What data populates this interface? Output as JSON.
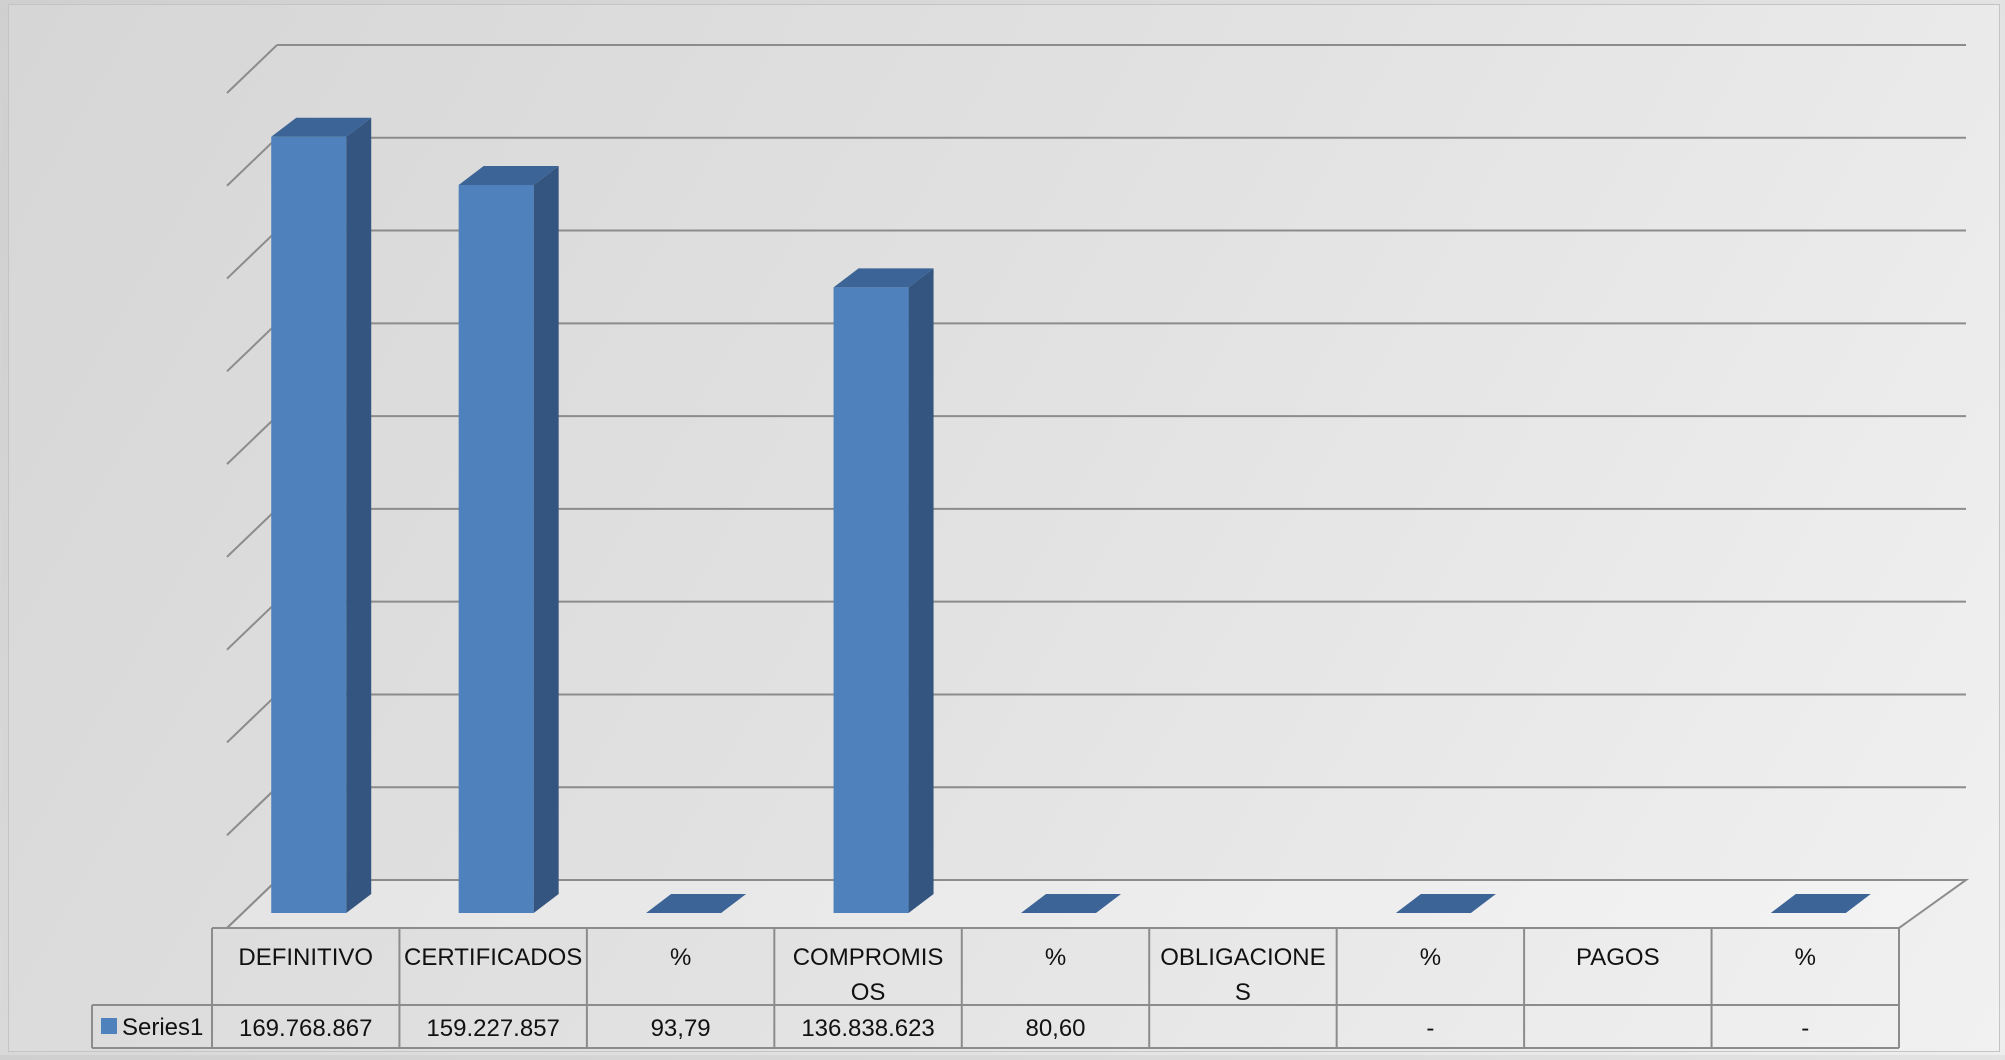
{
  "chart_data": {
    "type": "bar",
    "categories": [
      "DEFINITIVO",
      "CERTIFICADOS",
      "%",
      "COMPROMISOS",
      "%",
      "OBLIGACIONES",
      "%",
      "PAGOS",
      "%"
    ],
    "category_lines": [
      [
        "DEFINITIVO"
      ],
      [
        "CERTIFICADOS"
      ],
      [
        "%"
      ],
      [
        "COMPROMIS",
        "OS"
      ],
      [
        "%"
      ],
      [
        "OBLIGACIONE",
        "S"
      ],
      [
        "%"
      ],
      [
        "PAGOS"
      ],
      [
        "%"
      ]
    ],
    "series": [
      {
        "name": "Series1",
        "values": [
          169768867,
          159227857,
          93.79,
          136838623,
          80.6,
          null,
          0,
          null,
          0
        ],
        "labels": [
          "169.768.867",
          "159.227.857",
          "93,79",
          "136.838.623",
          "80,60",
          "",
          "-",
          "",
          "-"
        ]
      }
    ],
    "ylim": [
      0,
      180000000
    ],
    "grid": true,
    "legend": "data-table",
    "colors": {
      "bar_front": "#4f81bd",
      "bar_side": "#34557f",
      "bar_top": "#3c6496",
      "grid": "#8c8c8c",
      "table_border": "#8c8c8c"
    }
  }
}
